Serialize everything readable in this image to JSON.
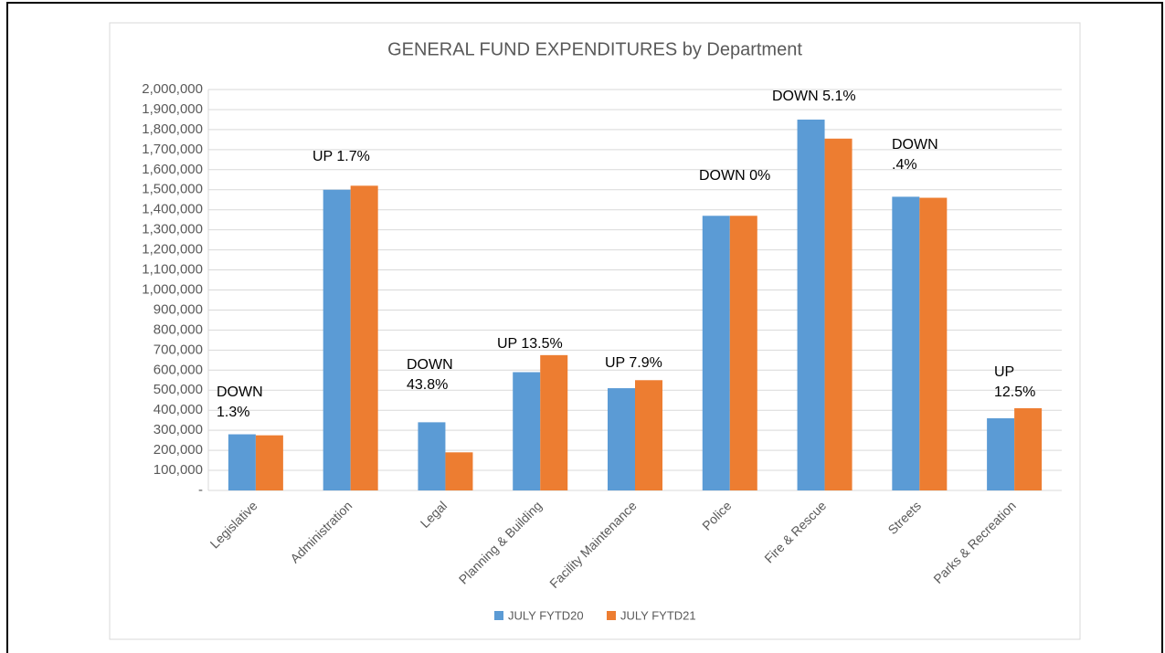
{
  "chart_data": {
    "type": "bar",
    "title": "GENERAL FUND EXPENDITURES by Department",
    "categories": [
      "Legislative",
      "Administration",
      "Legal",
      "Planning & Building",
      "Facility Maintenance",
      "Police",
      "Fire & Rescue",
      "Streets",
      "Parks & Recreation"
    ],
    "series": [
      {
        "name": "JULY FYTD20",
        "color": "#5b9bd5",
        "values": [
          280000,
          1500000,
          340000,
          590000,
          510000,
          1370000,
          1850000,
          1465000,
          360000
        ]
      },
      {
        "name": "JULY FYTD21",
        "color": "#ed7d31",
        "values": [
          275000,
          1520000,
          190000,
          675000,
          550000,
          1370000,
          1755000,
          1460000,
          410000
        ]
      }
    ],
    "annotations": [
      [
        "DOWN",
        "1.3%"
      ],
      [
        "UP 1.7%"
      ],
      [
        "DOWN",
        "43.8%"
      ],
      [
        "UP 13.5%"
      ],
      [
        "UP 7.9%"
      ],
      [
        "DOWN 0%"
      ],
      [
        "DOWN 5.1%"
      ],
      [
        "DOWN",
        ".4%"
      ],
      [
        "UP",
        "12.5%"
      ]
    ],
    "ylim": [
      0,
      2000000
    ],
    "yticks": [
      {
        "value": 0,
        "label": "-"
      },
      {
        "value": 100000,
        "label": "100,000"
      },
      {
        "value": 200000,
        "label": "200,000"
      },
      {
        "value": 300000,
        "label": "300,000"
      },
      {
        "value": 400000,
        "label": "400,000"
      },
      {
        "value": 500000,
        "label": "500,000"
      },
      {
        "value": 600000,
        "label": "600,000"
      },
      {
        "value": 700000,
        "label": "700,000"
      },
      {
        "value": 800000,
        "label": "800,000"
      },
      {
        "value": 900000,
        "label": "900,000"
      },
      {
        "value": 1000000,
        "label": "1,000,000"
      },
      {
        "value": 1100000,
        "label": "1,100,000"
      },
      {
        "value": 1200000,
        "label": "1,200,000"
      },
      {
        "value": 1300000,
        "label": "1,300,000"
      },
      {
        "value": 1400000,
        "label": "1,400,000"
      },
      {
        "value": 1500000,
        "label": "1,500,000"
      },
      {
        "value": 1600000,
        "label": "1,600,000"
      },
      {
        "value": 1700000,
        "label": "1,700,000"
      },
      {
        "value": 1800000,
        "label": "1,800,000"
      },
      {
        "value": 1900000,
        "label": "1,900,000"
      },
      {
        "value": 2000000,
        "label": "2,000,000"
      }
    ],
    "grid": true,
    "legend": "bottom"
  }
}
